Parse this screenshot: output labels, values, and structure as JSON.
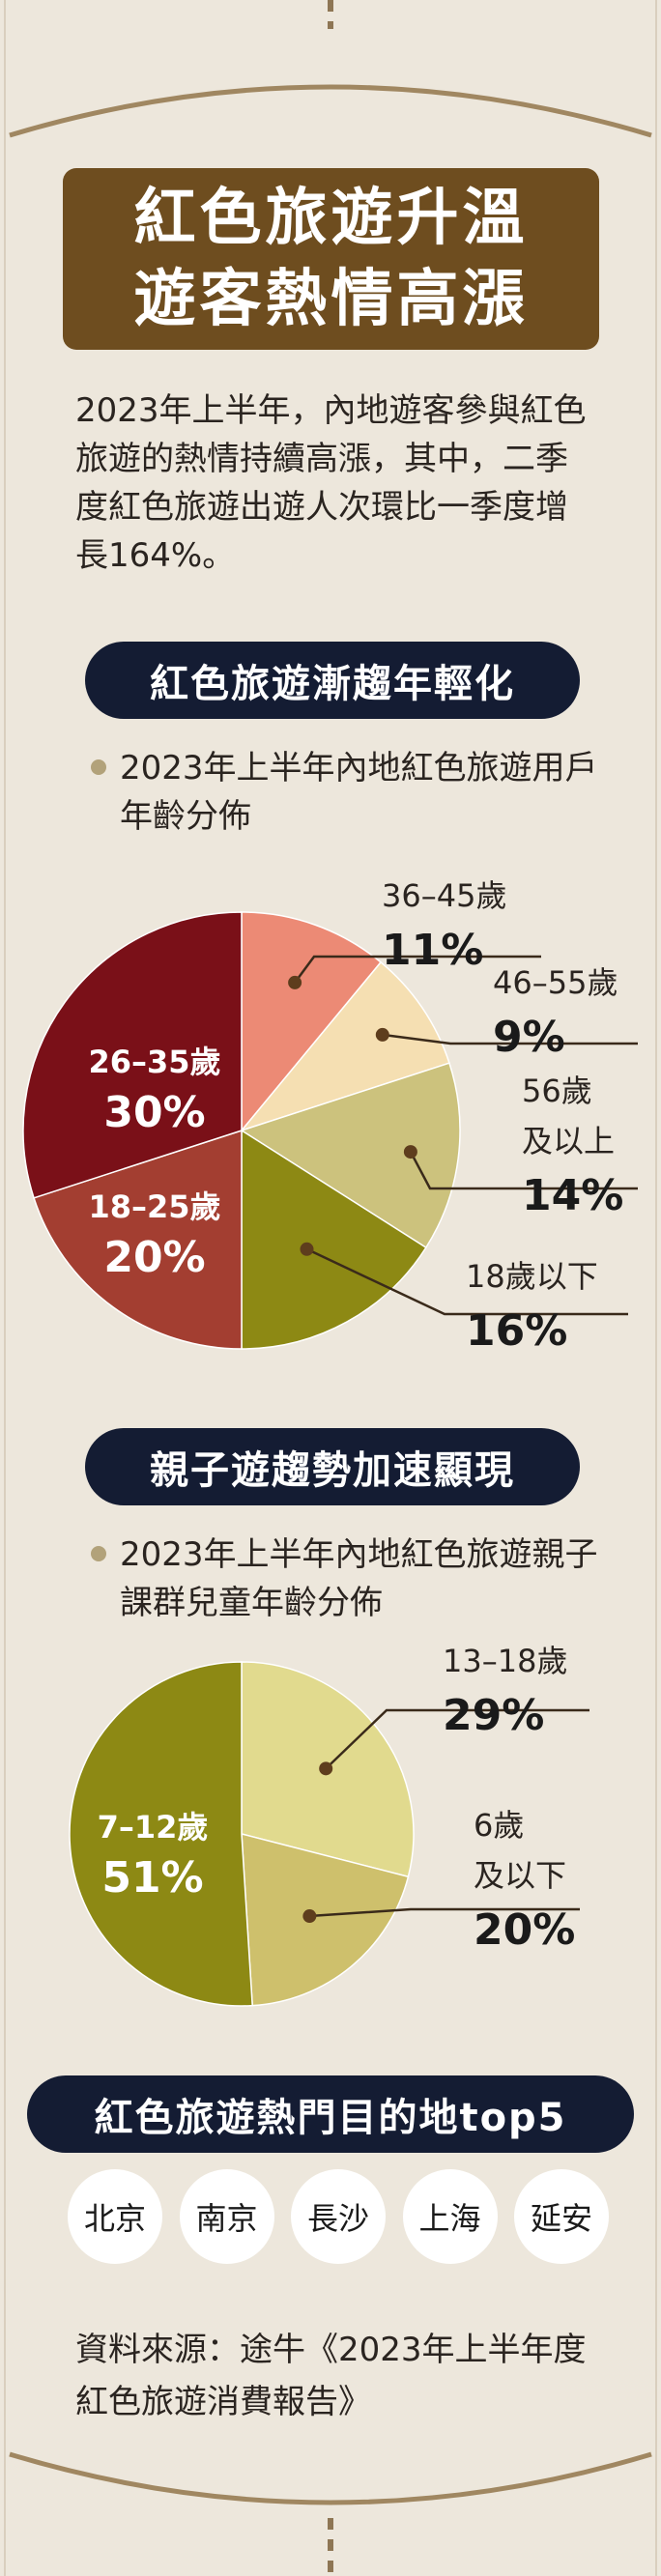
{
  "title": {
    "line1": "紅色旅遊升溫",
    "line2": "遊客熱情高漲"
  },
  "intro": "2023年上半年，內地遊客參與紅色旅遊的熱情持續高漲，其中，二季度紅色旅遊出遊人次環比一季度增長164%。",
  "section1": {
    "heading": "紅色旅遊漸趨年輕化",
    "subtitle": "2023年上半年內地紅色旅遊用戶年齡分佈"
  },
  "section2": {
    "heading": "親子遊趨勢加速顯現",
    "subtitle": "2023年上半年內地紅色旅遊親子課群兒童年齡分佈"
  },
  "section3": {
    "heading": "紅色旅遊熱門目的地top5",
    "cities": [
      "北京",
      "南京",
      "長沙",
      "上海",
      "延安"
    ]
  },
  "source": "資料來源：途牛《2023年上半年度紅色旅遊消費報告》",
  "chart_data": [
    {
      "type": "pie",
      "title": "2023年上半年內地紅色旅遊用戶年齡分佈",
      "slices": [
        {
          "label": "36–45歲",
          "value": 11,
          "value_label": "11%",
          "color": "#ec8a75",
          "label_outside": true
        },
        {
          "label": "46–55歲",
          "value": 9,
          "value_label": "9%",
          "color": "#f5dfb2",
          "label_outside": true
        },
        {
          "label": "56歲及以上",
          "value": 14,
          "value_label": "14%",
          "color": "#ccc27d",
          "label_outside": true
        },
        {
          "label": "18歲以下",
          "value": 16,
          "value_label": "16%",
          "color": "#8d8914",
          "label_outside": true
        },
        {
          "label": "18–25歲",
          "value": 20,
          "value_label": "20%",
          "color": "#a33e31",
          "label_outside": false
        },
        {
          "label": "26–35歲",
          "value": 30,
          "value_label": "30%",
          "color": "#7a1018",
          "label_outside": false
        }
      ]
    },
    {
      "type": "pie",
      "title": "2023年上半年內地紅色旅遊親子課群兒童年齡分佈",
      "slices": [
        {
          "label": "13–18歲",
          "value": 29,
          "value_label": "29%",
          "color": "#e1da8e",
          "label_outside": true
        },
        {
          "label": "6歲及以下",
          "value": 20,
          "value_label": "20%",
          "color": "#cec06c",
          "label_outside": true
        },
        {
          "label": "7–12歲",
          "value": 51,
          "value_label": "51%",
          "color": "#8d8914",
          "label_outside": false
        }
      ]
    }
  ]
}
